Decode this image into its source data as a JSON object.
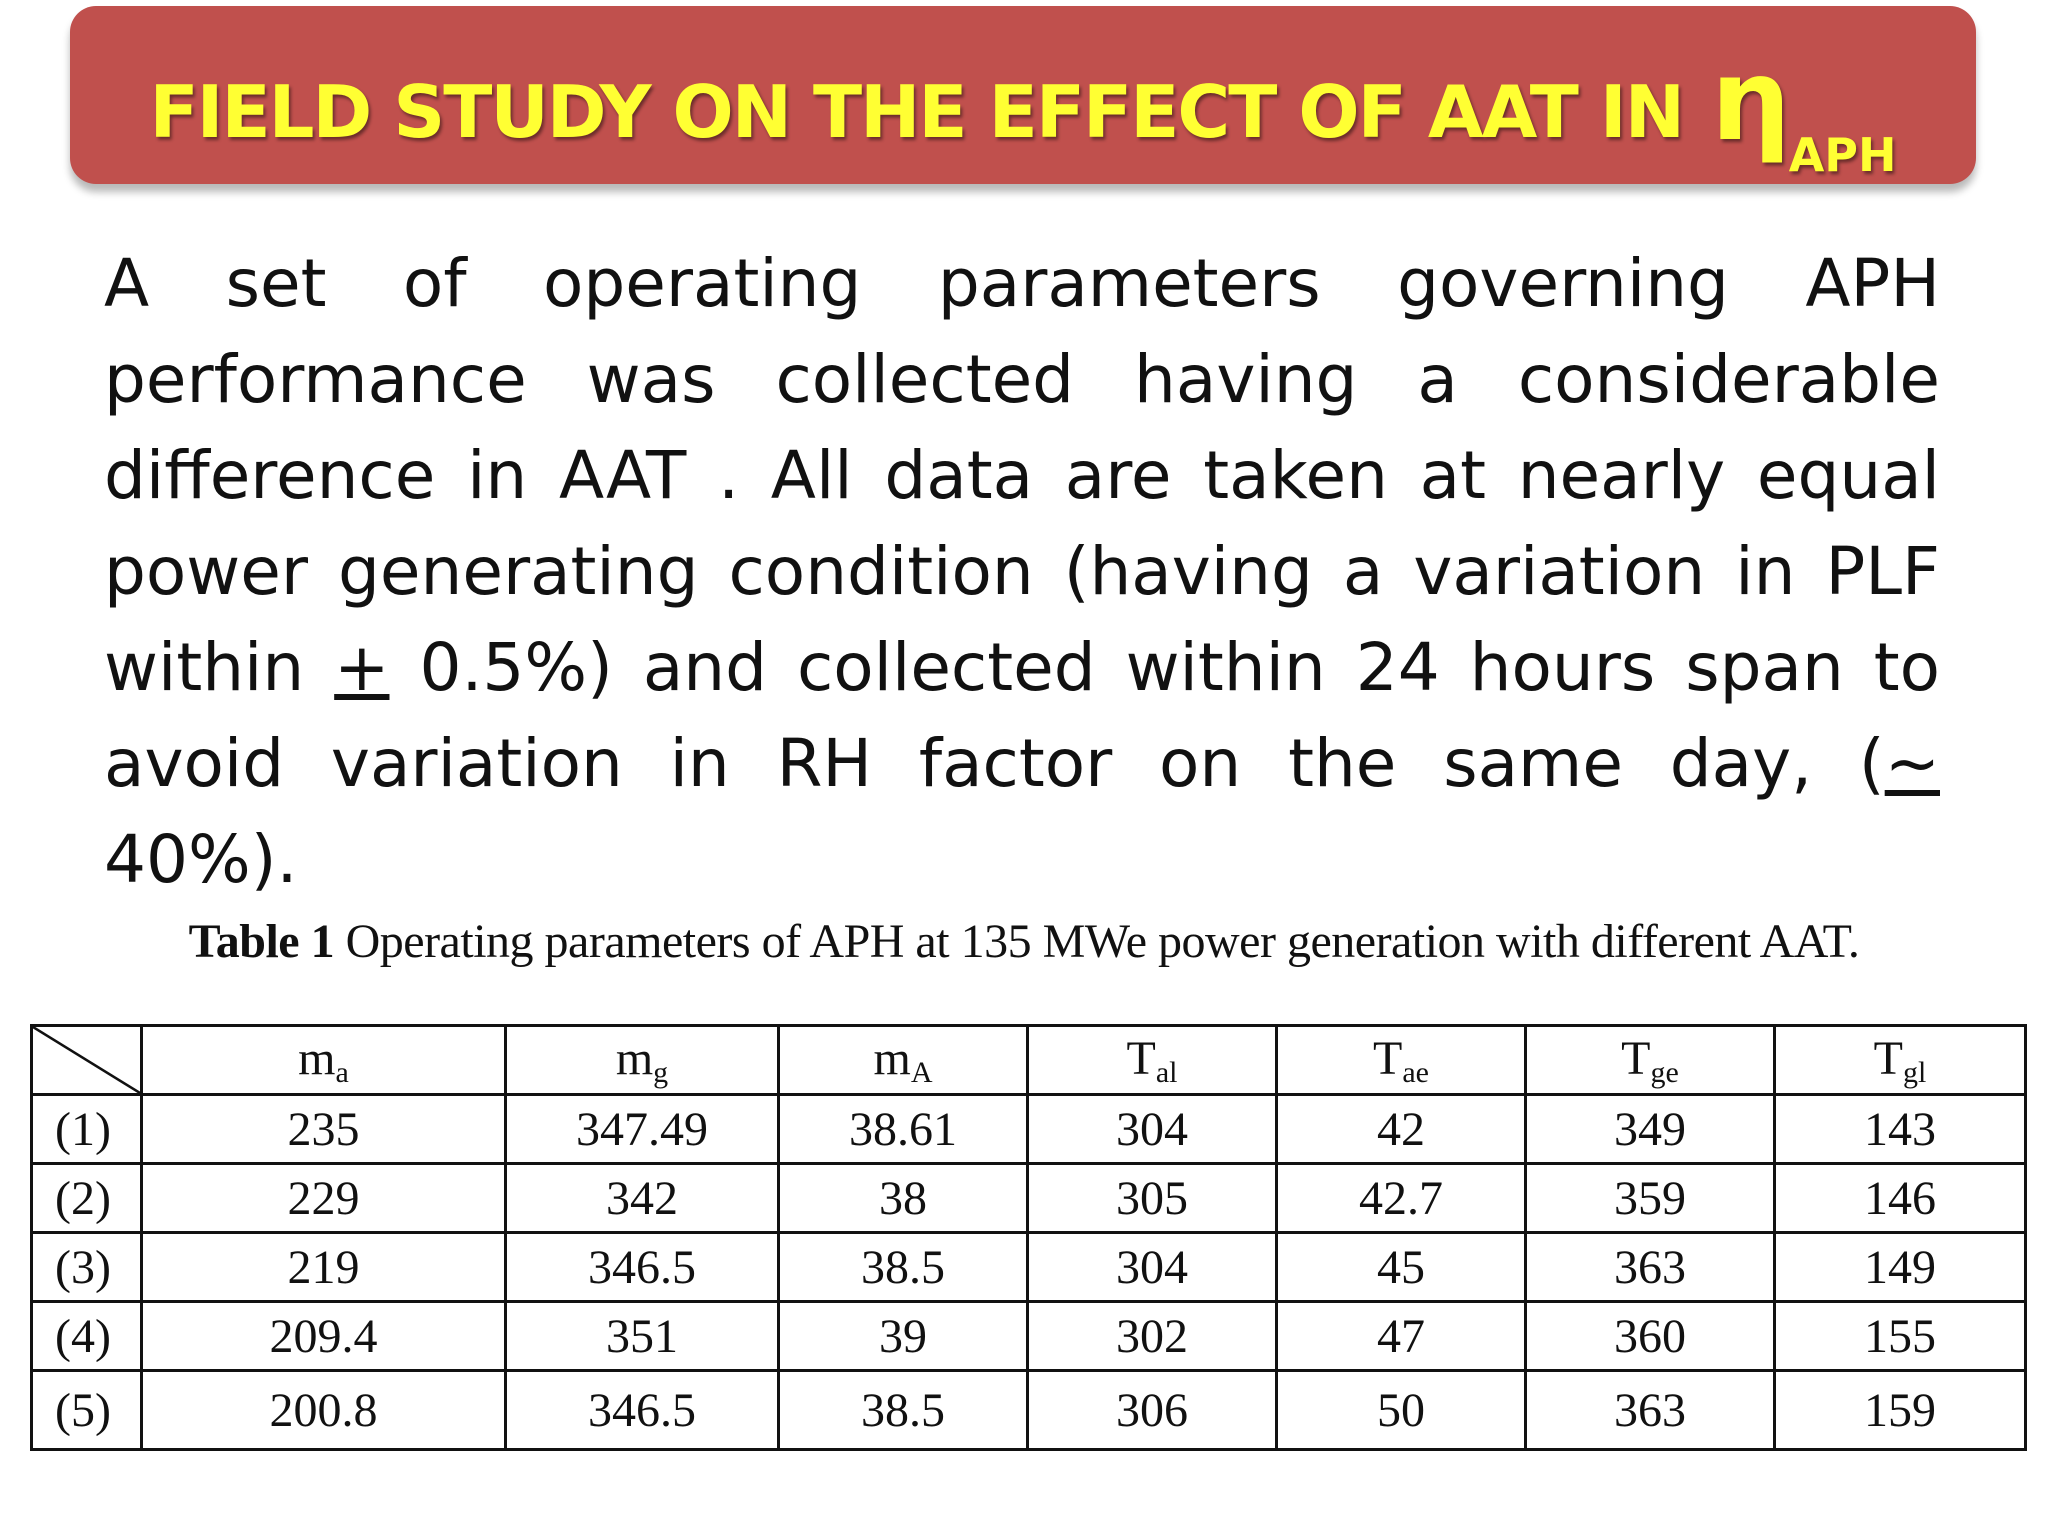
{
  "title": {
    "main": "FIELD STUDY ON THE EFFECT OF AAT IN",
    "symbol": "η",
    "symbol_sub": "APH"
  },
  "body": {
    "part1": "A set of operating parameters governing APH performance was collected having a considerable difference in AAT . All data are taken at nearly equal power generating condition (having a variation in PLF within ",
    "pm": "+",
    "part2": " 0.5%) and collected within 24 hours span to avoid variation in RH factor on the same day, (",
    "approx": "~",
    "part3": " 40%)."
  },
  "caption": {
    "label": "Table 1",
    "text": " Operating parameters of APH at 135 MWe power generation with different AAT."
  },
  "table": {
    "headers": [
      {
        "base": "m",
        "sub": "a"
      },
      {
        "base": "m",
        "sub": "g"
      },
      {
        "base": "m",
        "sub": "A"
      },
      {
        "base": "T",
        "sub": "al"
      },
      {
        "base": "T",
        "sub": "ae"
      },
      {
        "base": "T",
        "sub": "ge"
      },
      {
        "base": "T",
        "sub": "gl"
      }
    ],
    "rows": [
      {
        "label": "(1)",
        "values": [
          "235",
          "347.49",
          "38.61",
          "304",
          "42",
          "349",
          "143"
        ]
      },
      {
        "label": "(2)",
        "values": [
          "229",
          "342",
          "38",
          "305",
          "42.7",
          "359",
          "146"
        ]
      },
      {
        "label": "(3)",
        "values": [
          "219",
          "346.5",
          "38.5",
          "304",
          "45",
          "363",
          "149"
        ]
      },
      {
        "label": "(4)",
        "values": [
          "209.4",
          "351",
          "39",
          "302",
          "47",
          "360",
          "155"
        ]
      },
      {
        "label": "(5)",
        "values": [
          "200.8",
          "346.5",
          "38.5",
          "306",
          "50",
          "363",
          "159"
        ]
      }
    ]
  }
}
